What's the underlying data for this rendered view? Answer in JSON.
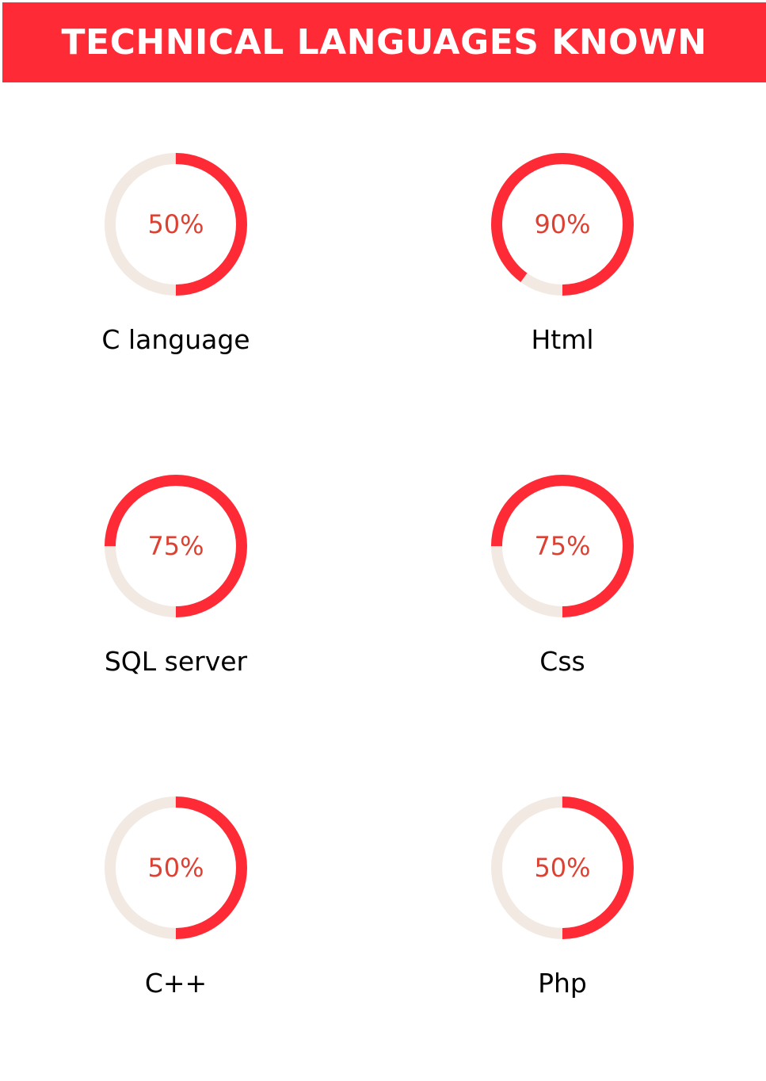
{
  "header": {
    "title": "TECHNICAL LANGUAGES KNOWN"
  },
  "colors": {
    "accent": "#fe2a36",
    "track": "#f1e9e2",
    "percent_text": "#de4132",
    "label_text": "#000000",
    "header_text": "#ffffff"
  },
  "skills": [
    {
      "name": "C language",
      "percent_label": "50%",
      "percent": 50
    },
    {
      "name": "Html",
      "percent_label": "90%",
      "percent": 90
    },
    {
      "name": "SQL server",
      "percent_label": "75%",
      "percent": 75
    },
    {
      "name": "Css",
      "percent_label": "75%",
      "percent": 75
    },
    {
      "name": "C++",
      "percent_label": "50%",
      "percent": 50
    },
    {
      "name": "Php",
      "percent_label": "50%",
      "percent": 50
    }
  ]
}
